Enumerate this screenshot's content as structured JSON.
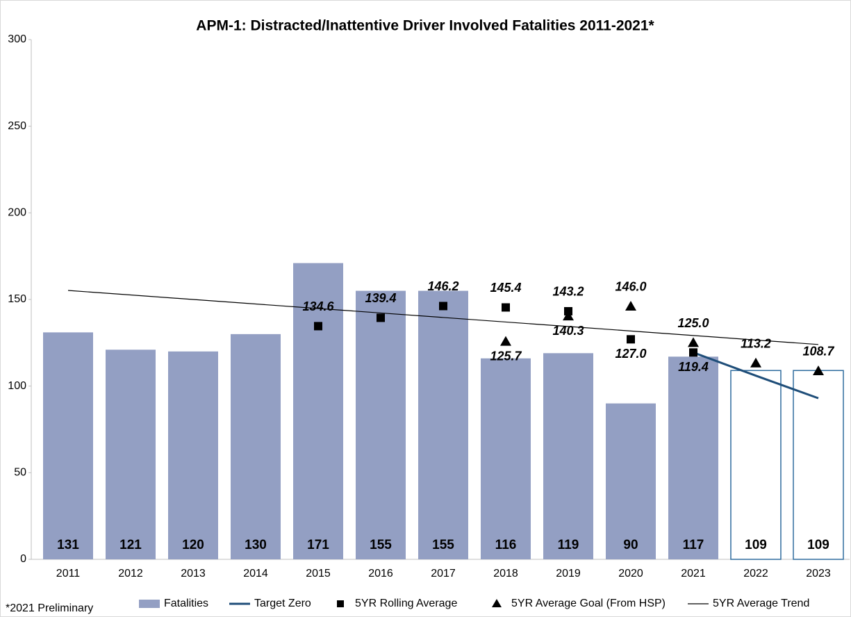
{
  "chart_data": {
    "type": "bar",
    "title": "APM-1: Distracted/Inattentive Driver Involved Fatalities 2011-2021*",
    "note": "*2021 Preliminary",
    "categories": [
      "2011",
      "2012",
      "2013",
      "2014",
      "2015",
      "2016",
      "2017",
      "2018",
      "2019",
      "2020",
      "2021",
      "2022",
      "2023"
    ],
    "ylim": [
      0,
      300
    ],
    "yticks": [
      0,
      50,
      100,
      150,
      200,
      250,
      300
    ],
    "grid": false,
    "legend": "bottom",
    "series": [
      {
        "name": "Fatalities",
        "type": "bar",
        "color": "#939fc3",
        "edgecolor": "#2e6b9e",
        "colors": [
          "#939fc3",
          "#939fc3",
          "#939fc3",
          "#939fc3",
          "#939fc3",
          "#939fc3",
          "#939fc3",
          "#939fc3",
          "#939fc3",
          "#939fc3",
          "#939fc3",
          "#ffffff",
          "#ffffff"
        ],
        "values": [
          131,
          121,
          120,
          130,
          171,
          155,
          155,
          116,
          119,
          90,
          117,
          109,
          109
        ]
      },
      {
        "name": "Target Zero",
        "type": "line",
        "color": "#1f4e79",
        "values": [
          null,
          null,
          null,
          null,
          null,
          null,
          null,
          null,
          null,
          null,
          119.4,
          106,
          93
        ]
      },
      {
        "name": "5YR Rolling Average",
        "type": "scatter",
        "marker": "square",
        "color": "#000000",
        "values": [
          null,
          null,
          null,
          null,
          134.6,
          139.4,
          146.2,
          145.4,
          143.2,
          127.0,
          119.4,
          null,
          null
        ],
        "value_labels": [
          null,
          null,
          null,
          null,
          "134.6",
          "139.4",
          "146.2",
          "145.4",
          "143.2",
          "127.0",
          "119.4",
          null,
          null
        ]
      },
      {
        "name": "5YR Average Goal (From HSP)",
        "type": "scatter",
        "marker": "triangle",
        "color": "#000000",
        "values": [
          null,
          null,
          null,
          null,
          null,
          null,
          null,
          125.7,
          140.3,
          146.0,
          125.0,
          113.2,
          108.7
        ],
        "value_labels": [
          null,
          null,
          null,
          null,
          null,
          null,
          null,
          "125.7",
          "140.3",
          "146.0",
          "125.0",
          "113.2",
          "108.7"
        ]
      },
      {
        "name": "5YR Average Trend",
        "type": "line",
        "color": "#000000",
        "thin": true,
        "values": [
          155.2,
          152.6,
          150.0,
          147.4,
          144.8,
          142.2,
          139.6,
          137.0,
          134.4,
          131.8,
          129.2,
          126.6,
          124.0
        ]
      }
    ]
  }
}
